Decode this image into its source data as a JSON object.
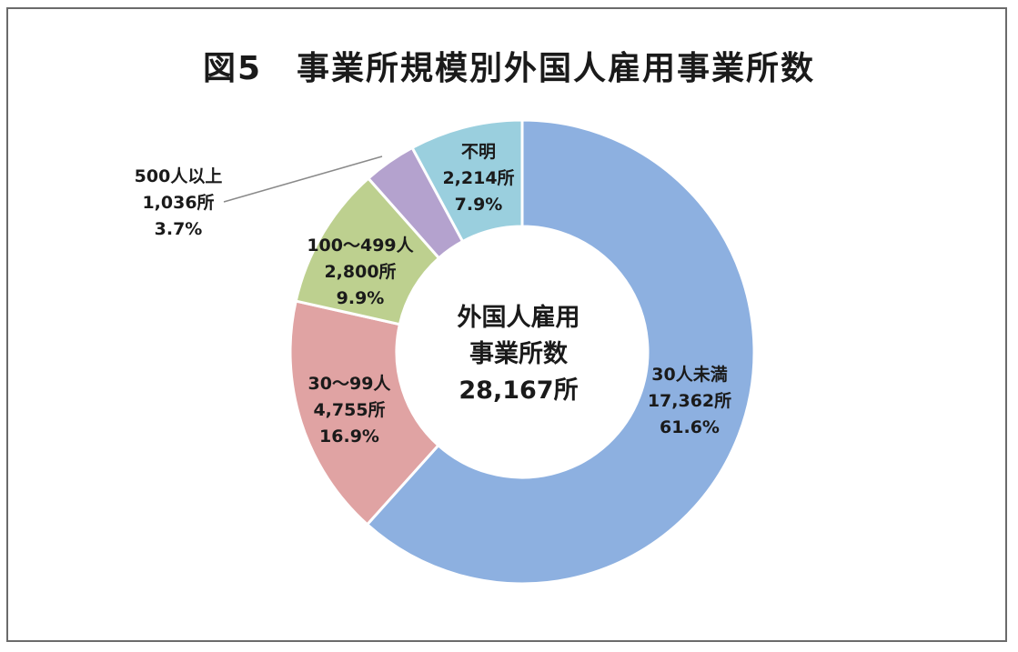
{
  "title": "図5　事業所規模別外国人雇用事業所数",
  "center": {
    "line1": "外国人雇用",
    "line2": "事業所数",
    "line3": "28,167所"
  },
  "segments": [
    {
      "name": "30人未満",
      "count": "17,362所",
      "pct": "61.6%",
      "color": "#8DB0E0"
    },
    {
      "name": "30〜99人",
      "count": "4,755所",
      "pct": "16.9%",
      "color": "#E0A3A3"
    },
    {
      "name": "100〜499人",
      "count": "2,800所",
      "pct": "9.9%",
      "color": "#BDD08F"
    },
    {
      "name": "500人以上",
      "count": "1,036所",
      "pct": "3.7%",
      "color": "#B4A2CE"
    },
    {
      "name": "不明",
      "count": "2,214所",
      "pct": "7.9%",
      "color": "#9ACFDE"
    }
  ],
  "chart_data": {
    "type": "pie",
    "variant": "donut",
    "title": "図5　事業所規模別外国人雇用事業所数",
    "center_label": "外国人雇用事業所数 28,167所",
    "total": 28167,
    "categories": [
      "30人未満",
      "30〜99人",
      "100〜499人",
      "500人以上",
      "不明"
    ],
    "values": [
      17362,
      4755,
      2800,
      1036,
      2214
    ],
    "percentages": [
      61.6,
      16.9,
      9.9,
      3.7,
      7.9
    ],
    "colors": [
      "#8DB0E0",
      "#E0A3A3",
      "#BDD08F",
      "#B4A2CE",
      "#9ACFDE"
    ],
    "start_angle": "12 o'clock",
    "direction": "clockwise",
    "legend": "none (data labels on slices)"
  }
}
